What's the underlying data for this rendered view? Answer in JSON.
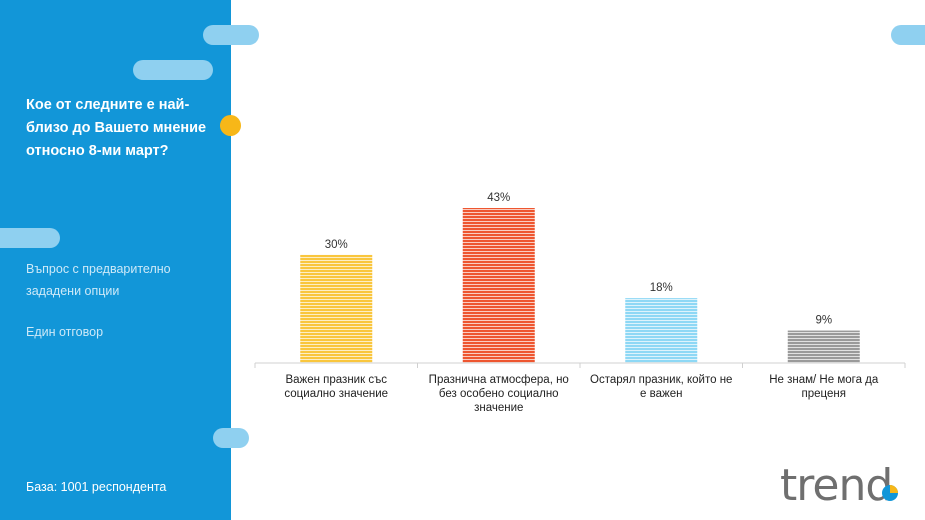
{
  "sidebar": {
    "question": "Кое от следните е най-близо до Вашето мнение относно 8-ми март?",
    "meta": [
      "Въпрос с предварително зададени опции",
      "Един отговор"
    ],
    "base": "База:  1001 респондента"
  },
  "logo": {
    "text": "trend"
  },
  "colors": {
    "sidebar": "#1296d8",
    "pill": "#8fd0f0",
    "accent_dot": "#f7b718"
  },
  "chart_data": {
    "type": "bar",
    "categories": [
      "Важен празник със социално значение",
      "Празнична атмосфера, но без особено социално значение",
      "Остарял празник, който не е важен",
      "Не знам/ Не мога да преценя"
    ],
    "values": [
      30,
      43,
      18,
      9
    ],
    "data_labels": [
      "30%",
      "43%",
      "18%",
      "9%"
    ],
    "colors": [
      "#f9c63d",
      "#ee5630",
      "#8ed8f5",
      "#9a9a9a"
    ],
    "ylim": [
      0,
      43
    ],
    "grid": false,
    "legend": "none"
  }
}
